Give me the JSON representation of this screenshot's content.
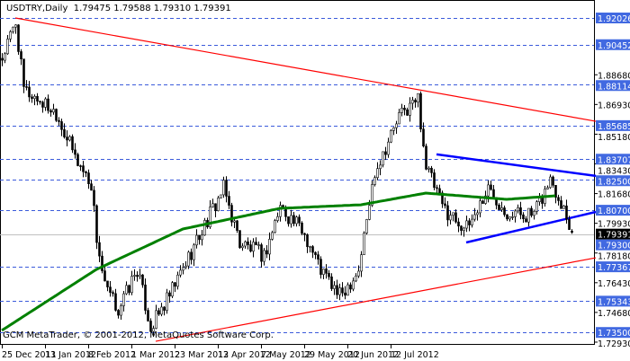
{
  "chart_data": {
    "type": "candlestick",
    "symbol": "USDTRY",
    "timeframe": "Daily",
    "header": "USDTRY,Daily  1.79475 1.79588 1.79310 1.79391",
    "ohlc_last": {
      "open": 1.79475,
      "high": 1.79588,
      "low": 1.7931,
      "close": 1.79391
    },
    "copyright": "GCM MetaTrader, © 2001-2012, MetaQuotes Software Corp.",
    "ylim": [
      1.727,
      1.93
    ],
    "y_ticks": [
      "1.88680",
      "1.86930",
      "1.85180",
      "1.83430",
      "1.81680",
      "1.79930",
      "1.78180",
      "1.76430",
      "1.74680",
      "1.72930"
    ],
    "levels": [
      "1.92026",
      "1.90452",
      "1.88114",
      "1.85685",
      "1.83707",
      "1.82500",
      "1.80700",
      "1.79300",
      "1.77367",
      "1.75343",
      "1.73500"
    ],
    "current_price": "1.79391",
    "x_ticks": [
      {
        "bar": 0,
        "label": "25 Dec 2011"
      },
      {
        "bar": 16,
        "label": "13 Jan 2012"
      },
      {
        "bar": 32,
        "label": "8 Feb 2012"
      },
      {
        "bar": 48,
        "label": "1 Mar 2012"
      },
      {
        "bar": 64,
        "label": "23 Mar 2012"
      },
      {
        "bar": 80,
        "label": "13 Apr 2012"
      },
      {
        "bar": 96,
        "label": "7 May 2012"
      },
      {
        "bar": 112,
        "label": "29 May 2012"
      },
      {
        "bar": 128,
        "label": "20 Jun 2012"
      },
      {
        "bar": 144,
        "label": "12 Jul 2012"
      }
    ],
    "close_path": [
      [
        0,
        1.8965
      ],
      [
        5,
        1.9176
      ],
      [
        8,
        1.8779
      ],
      [
        13,
        1.8726
      ],
      [
        20,
        1.8647
      ],
      [
        27,
        1.8383
      ],
      [
        33,
        1.8224
      ],
      [
        35,
        1.7907
      ],
      [
        38,
        1.7616
      ],
      [
        43,
        1.7483
      ],
      [
        50,
        1.7721
      ],
      [
        55,
        1.7378
      ],
      [
        62,
        1.7563
      ],
      [
        70,
        1.7827
      ],
      [
        82,
        1.8198
      ],
      [
        88,
        1.788
      ],
      [
        97,
        1.7801
      ],
      [
        103,
        1.8092
      ],
      [
        112,
        1.7933
      ],
      [
        118,
        1.7721
      ],
      [
        125,
        1.7563
      ],
      [
        132,
        1.7721
      ],
      [
        138,
        1.8303
      ],
      [
        147,
        1.8621
      ],
      [
        154,
        1.8727
      ],
      [
        157,
        1.833
      ],
      [
        163,
        1.8092
      ],
      [
        172,
        1.7959
      ],
      [
        180,
        1.8198
      ],
      [
        187,
        1.8065
      ],
      [
        197,
        1.8039
      ],
      [
        203,
        1.8251
      ],
      [
        208,
        1.8092
      ],
      [
        211,
        1.79391
      ]
    ],
    "moving_average": [
      [
        0,
        1.7362
      ],
      [
        35,
        1.7721
      ],
      [
        67,
        1.7959
      ],
      [
        103,
        1.8081
      ],
      [
        133,
        1.8102
      ],
      [
        157,
        1.8171
      ],
      [
        187,
        1.8134
      ],
      [
        205,
        1.8155
      ]
    ],
    "trendlines": [
      {
        "color": "#ff0000",
        "from": [
          5,
          1.92026
        ],
        "to": [
          220,
          1.8594
        ]
      },
      {
        "color": "#ff0000",
        "from": [
          57,
          1.7298
        ],
        "to": [
          220,
          1.779
        ]
      },
      {
        "color": "#0000ff",
        "from": [
          161,
          1.8399
        ],
        "to": [
          220,
          1.8272
        ]
      },
      {
        "color": "#0000ff",
        "from": [
          172,
          1.788
        ],
        "to": [
          220,
          1.806
        ]
      }
    ],
    "colors": {
      "ma": "#008000",
      "level": "#3b5bdb",
      "label_bg": "#4169e1",
      "grid_current": "#c0c0c0"
    }
  }
}
